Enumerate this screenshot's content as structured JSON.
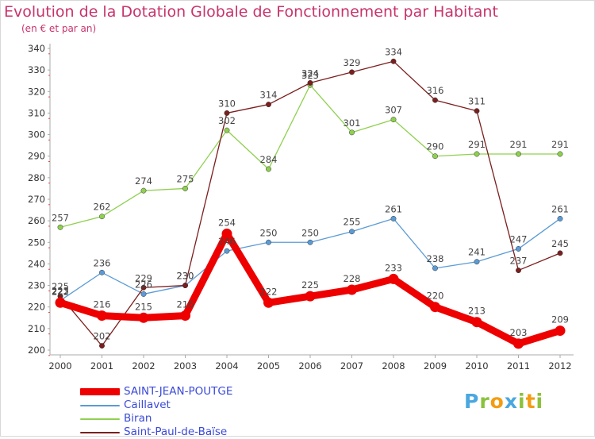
{
  "header": {
    "title": "Evolution de la Dotation Globale de Fonctionnement par Habitant",
    "subtitle": "(en € et par an)"
  },
  "logo": {
    "letters": [
      {
        "ch": "P",
        "color": "#4aa7e0"
      },
      {
        "ch": "r",
        "color": "#8ac23a"
      },
      {
        "ch": "o",
        "color": "#f39c12"
      },
      {
        "ch": "x",
        "color": "#4aa7e0"
      },
      {
        "ch": "i",
        "color": "#8ac23a"
      },
      {
        "ch": "t",
        "color": "#f39c12"
      },
      {
        "ch": "i",
        "color": "#8ac23a"
      }
    ]
  },
  "chart_data": {
    "type": "line",
    "title": "Evolution de la Dotation Globale de Fonctionnement par Habitant",
    "subtitle": "(en € et par an)",
    "x": [
      "2000",
      "2001",
      "2002",
      "2003",
      "2004",
      "2005",
      "2006",
      "2007",
      "2008",
      "2009",
      "2010",
      "2011",
      "2012"
    ],
    "ylim": [
      200,
      340
    ],
    "yticks": [
      200,
      210,
      220,
      230,
      240,
      250,
      260,
      270,
      280,
      290,
      300,
      310,
      320,
      330,
      340
    ],
    "grid": false,
    "legend_position": "bottom-left",
    "series": [
      {
        "name": "SAINT-JEAN-POUTGE",
        "color": "#ee0000",
        "emphasis": true,
        "values": [
          222,
          216,
          215,
          216,
          254,
          222,
          225,
          228,
          233,
          220,
          213,
          203,
          209
        ],
        "labels": [
          "222",
          "216",
          "215",
          "216",
          "254",
          "222",
          "225",
          "228",
          "233",
          "220",
          "213",
          "203",
          "209"
        ]
      },
      {
        "name": "Caillavet",
        "color": "#5b9bd5",
        "emphasis": false,
        "values": [
          223,
          236,
          226,
          230,
          246,
          250,
          250,
          255,
          261,
          238,
          241,
          247,
          261
        ],
        "labels": [
          "223",
          "236",
          "226",
          "230",
          "246",
          "250",
          "250",
          "255",
          "261",
          "238",
          "241",
          "247",
          "261"
        ]
      },
      {
        "name": "Biran",
        "color": "#8fd04f",
        "emphasis": false,
        "values": [
          257,
          262,
          274,
          275,
          302,
          284,
          323,
          301,
          307,
          290,
          291,
          291,
          291
        ],
        "labels": [
          "257",
          "262",
          "274",
          "275",
          "302",
          "284",
          "323",
          "301",
          "307",
          "290",
          "291",
          "291",
          "291"
        ]
      },
      {
        "name": "Saint-Paul-de-Baïse",
        "color": "#7b1e1e",
        "emphasis": false,
        "values": [
          225,
          202,
          229,
          230,
          310,
          314,
          324,
          329,
          334,
          316,
          311,
          237,
          245
        ],
        "labels": [
          "225",
          "202",
          "229",
          "230",
          "310",
          "314",
          "324",
          "329",
          "334",
          "316",
          "311",
          "237",
          "245"
        ]
      }
    ]
  }
}
